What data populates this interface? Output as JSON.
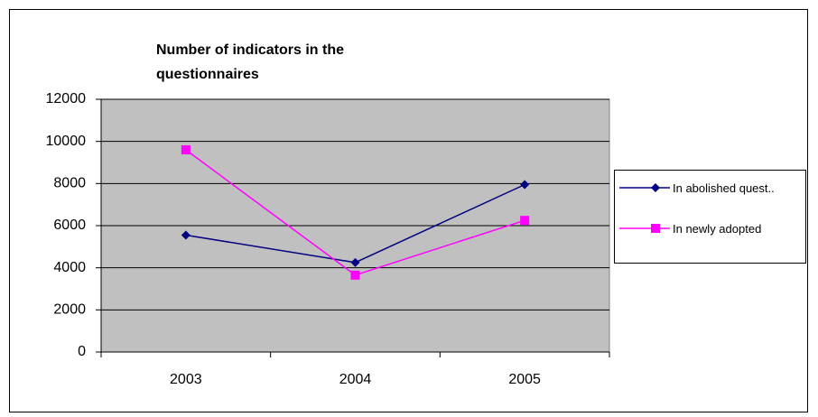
{
  "chart_data": {
    "type": "line",
    "title": "Number of indicators in the questionnaires",
    "categories": [
      "2003",
      "2004",
      "2005"
    ],
    "series": [
      {
        "name": "In abolished quest..",
        "color": "#000080",
        "marker": "diamond",
        "values": [
          5550,
          4250,
          7950
        ]
      },
      {
        "name": "In newly adopted",
        "color": "#ff00ff",
        "marker": "square",
        "values": [
          9600,
          3650,
          6250
        ]
      }
    ],
    "ylim": [
      0,
      12000
    ],
    "yticks": [
      0,
      2000,
      4000,
      6000,
      8000,
      10000,
      12000
    ],
    "grid": true,
    "legend": "right"
  }
}
